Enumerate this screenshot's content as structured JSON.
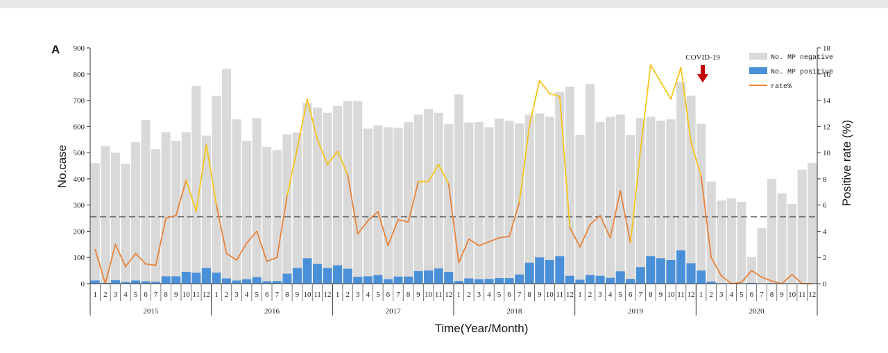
{
  "panel_label": "A",
  "chart_data": {
    "type": "bar",
    "ylabel": "No.case",
    "y2label": "Positive rate (%)",
    "xlabel": "Time(Year/Month)",
    "ylim": [
      0,
      900
    ],
    "y2lim": [
      0,
      18
    ],
    "yticks": [
      0,
      100,
      200,
      300,
      400,
      500,
      600,
      700,
      800,
      900
    ],
    "y2ticks": [
      0,
      2,
      4,
      6,
      8,
      10,
      12,
      14,
      16,
      18
    ],
    "years": [
      "2015",
      "2016",
      "2017",
      "2018",
      "2019",
      "2020"
    ],
    "months": [
      "1",
      "2",
      "3",
      "4",
      "5",
      "6",
      "7",
      "8",
      "9",
      "10",
      "11",
      "12"
    ],
    "threshold_rate": 5.1,
    "annotation": {
      "text": "COVID-19"
    },
    "legend": {
      "negative": "No. MP negative",
      "positive": "No. MP positive",
      "rate": "rate%"
    },
    "series": [
      {
        "name": "No. MP negative",
        "values": [
          460,
          525,
          500,
          458,
          540,
          625,
          513,
          578,
          545,
          578,
          755,
          565,
          717,
          820,
          627,
          545,
          632,
          522,
          510,
          570,
          577,
          690,
          672,
          652,
          678,
          697,
          697,
          592,
          605,
          597,
          595,
          617,
          645,
          667,
          652,
          610,
          722,
          615,
          617,
          597,
          630,
          622,
          612,
          645,
          650,
          637,
          732,
          752,
          567,
          762,
          617,
          637,
          645,
          567,
          632,
          637,
          622,
          627,
          770,
          718,
          610,
          390,
          317,
          325,
          312,
          102,
          212,
          400,
          345,
          305,
          435,
          460
        ]
      },
      {
        "name": "No. MP positive",
        "values": [
          12,
          3,
          13,
          6,
          12,
          9,
          7,
          28,
          28,
          45,
          42,
          60,
          42,
          20,
          12,
          17,
          25,
          9,
          10,
          38,
          60,
          97,
          75,
          60,
          70,
          57,
          26,
          28,
          33,
          17,
          27,
          27,
          48,
          50,
          58,
          45,
          10,
          20,
          17,
          18,
          21,
          21,
          35,
          80,
          100,
          90,
          105,
          30,
          15,
          33,
          30,
          22,
          47,
          18,
          63,
          105,
          97,
          90,
          127,
          78,
          50,
          8,
          2,
          0,
          1,
          3,
          1,
          2,
          0,
          1,
          0,
          0
        ]
      },
      {
        "name": "rate%",
        "values": [
          2.6,
          0.0,
          3.0,
          1.3,
          2.3,
          1.5,
          1.4,
          5.0,
          5.2,
          7.9,
          5.5,
          10.6,
          6.0,
          2.3,
          1.8,
          3.1,
          4.0,
          1.7,
          2.0,
          6.7,
          10.3,
          14.1,
          11.0,
          9.1,
          10.1,
          8.3,
          3.8,
          4.8,
          5.5,
          2.9,
          4.9,
          4.7,
          7.8,
          7.8,
          9.1,
          7.6,
          1.6,
          3.4,
          2.9,
          3.2,
          3.5,
          3.6,
          6.2,
          12.1,
          15.5,
          14.5,
          14.3,
          4.3,
          2.8,
          4.5,
          5.2,
          3.5,
          7.1,
          3.1,
          10.2,
          16.7,
          15.4,
          14.1,
          16.5,
          10.8,
          8.2,
          2.0,
          0.6,
          0.0,
          0.1,
          1.0,
          0.5,
          0.2,
          0.0,
          0.7,
          0.0,
          0.0
        ]
      }
    ],
    "grid": false,
    "legend_position": "top-right",
    "colors": {
      "negative": "#d9d9d9",
      "positive": "#4a90d9",
      "rate_high": "#f5c518",
      "rate_low": "#e8823a",
      "threshold": "#555555",
      "arrow": "#c00000"
    }
  }
}
